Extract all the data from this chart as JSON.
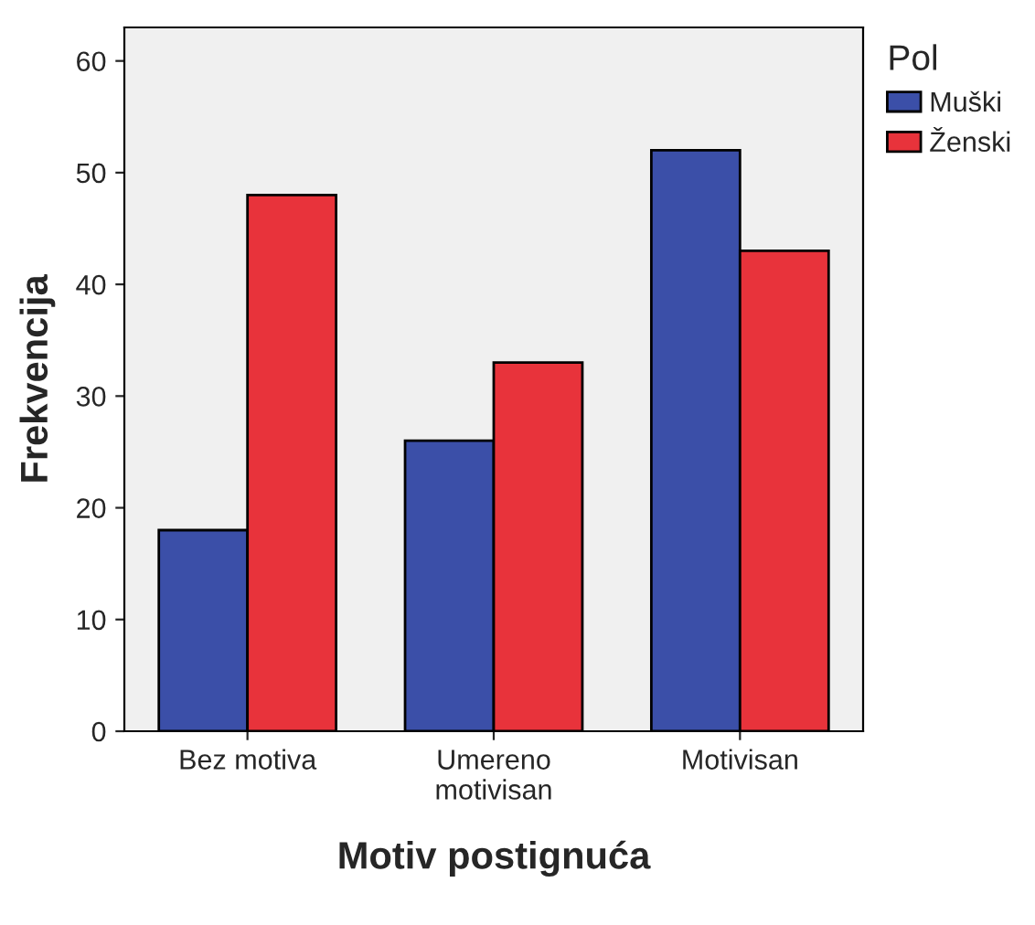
{
  "chart_data": {
    "type": "bar",
    "xlabel": "Motiv postignuća",
    "ylabel": "Frekvencija",
    "legend_title": "Pol",
    "categories": [
      "Bez motiva",
      "Umereno\nmotivisan",
      "Motivisan"
    ],
    "series": [
      {
        "name": "Muški",
        "color": "#3b4fa8",
        "values": [
          18,
          26,
          52
        ]
      },
      {
        "name": "Ženski",
        "color": "#e8333b",
        "values": [
          48,
          33,
          43
        ]
      }
    ],
    "ylim": [
      0,
      63
    ],
    "yticks": [
      0,
      10,
      20,
      30,
      40,
      50,
      60
    ],
    "grid": false,
    "legend": "top right"
  }
}
